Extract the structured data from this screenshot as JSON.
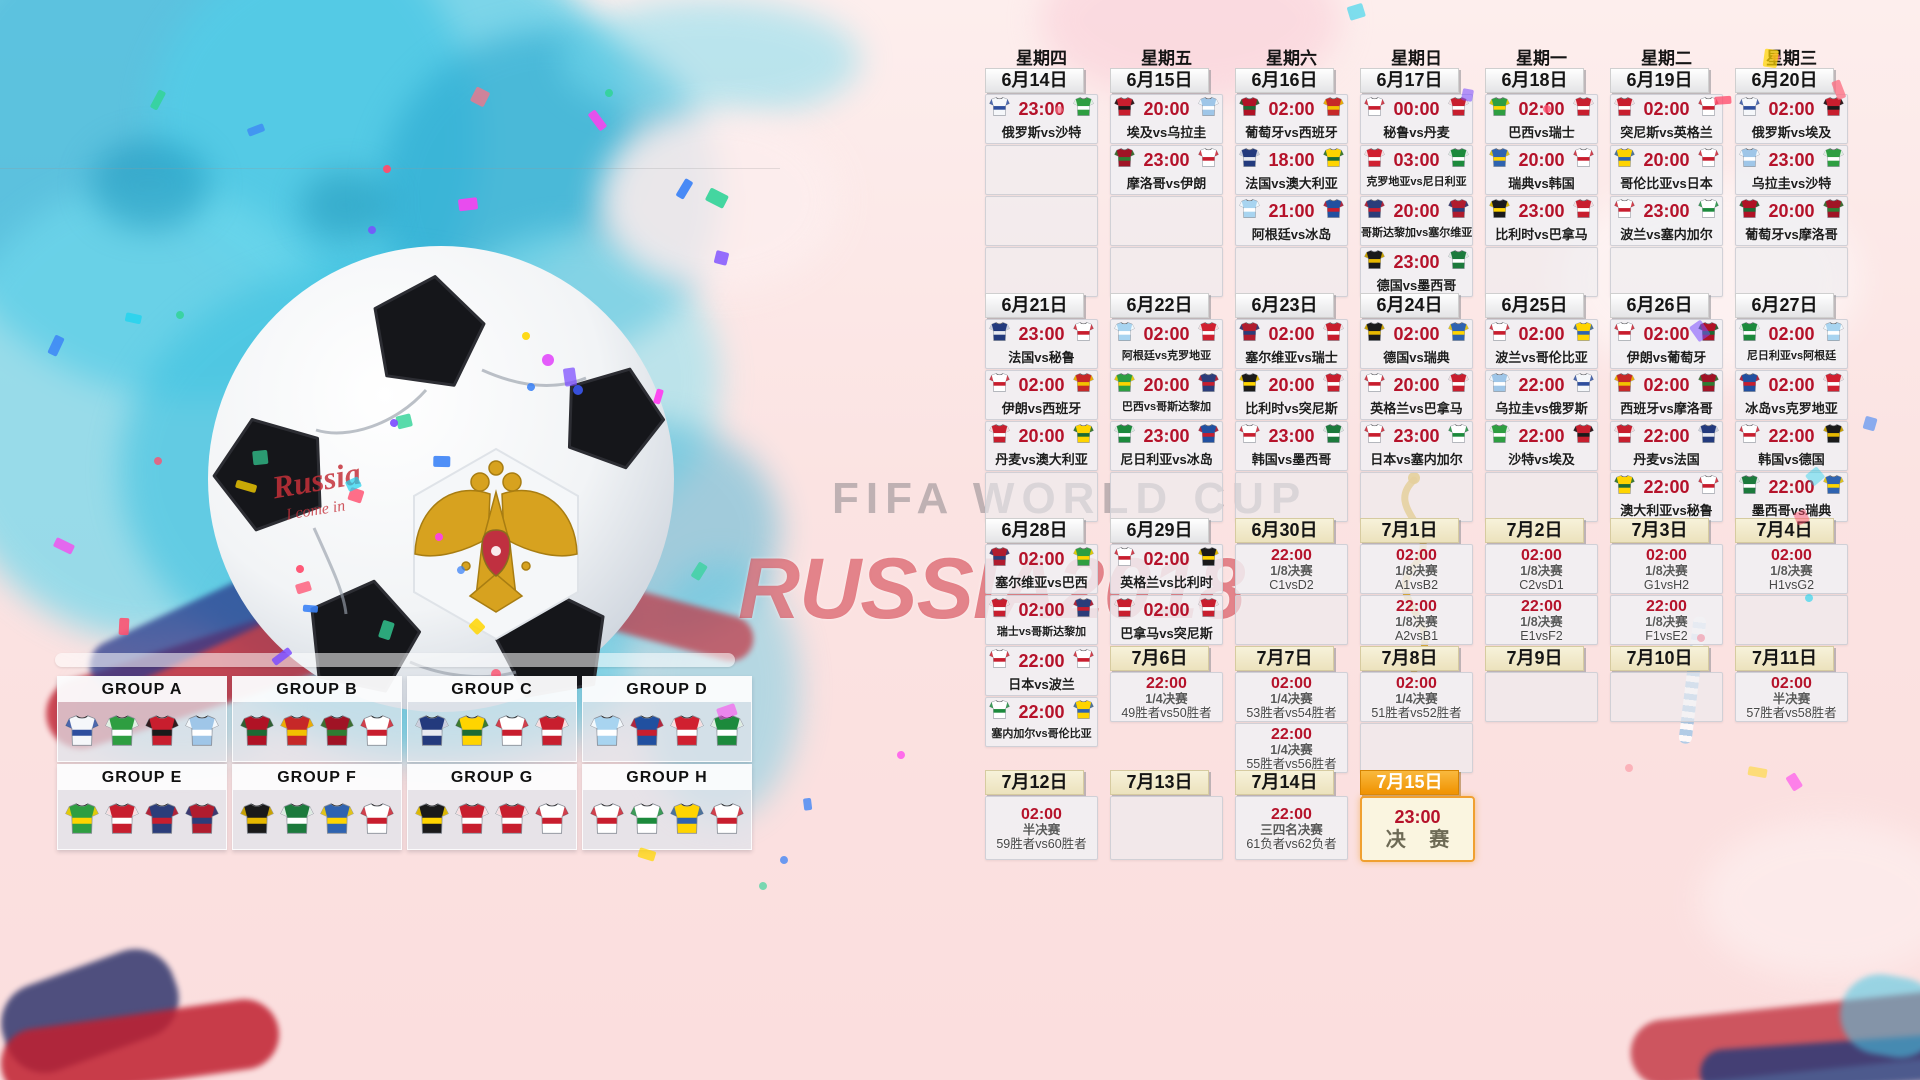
{
  "weekdays": [
    "星期四",
    "星期五",
    "星期六",
    "星期日",
    "星期一",
    "星期二",
    "星期三"
  ],
  "watermark": {
    "line1": "FIFA WORLD CUP",
    "line2": "RUSSIA2018"
  },
  "ball_graffiti": {
    "line1": "Russia",
    "line2": "I come in"
  },
  "colors": {
    "time_accent": "#b5122a",
    "header_plain": "#f2f2f2",
    "header_cream": "#efe8c9",
    "header_orange": "#f29500",
    "final_border": "#f0a030"
  },
  "teams": {
    "俄罗斯": [
      "#f5f7fa",
      "#2e4e9e"
    ],
    "沙特": [
      "#2e9e41",
      "#ffffff"
    ],
    "埃及": [
      "#c81e2e",
      "#1a1a1a"
    ],
    "乌拉圭": [
      "#9fc6e8",
      "#ffffff"
    ],
    "葡萄牙": [
      "#b01225",
      "#1c6b34"
    ],
    "西班牙": [
      "#c62828",
      "#f2c200"
    ],
    "摩洛哥": [
      "#a01325",
      "#2e7d32"
    ],
    "伊朗": [
      "#ffffff",
      "#c81e2e"
    ],
    "法国": [
      "#233a7d",
      "#e8eaf0"
    ],
    "澳大利亚": [
      "#ffd400",
      "#1c6b34"
    ],
    "秘鲁": [
      "#ffffff",
      "#c81e2e"
    ],
    "丹麦": [
      "#c81e2e",
      "#ffffff"
    ],
    "阿根廷": [
      "#a8d4f0",
      "#ffffff"
    ],
    "冰岛": [
      "#2150a0",
      "#c81e2e"
    ],
    "克罗地亚": [
      "#d02030",
      "#ffffff"
    ],
    "尼日利亚": [
      "#1c8a3c",
      "#ffffff"
    ],
    "巴西": [
      "#2e9e41",
      "#ffd400"
    ],
    "瑞士": [
      "#c81e2e",
      "#ffffff"
    ],
    "哥斯达黎加": [
      "#2b3d7a",
      "#c81e2e"
    ],
    "塞尔维亚": [
      "#b01c2e",
      "#2b3d7a"
    ],
    "德国": [
      "#1a1a1a",
      "#e6b800"
    ],
    "墨西哥": [
      "#1c7a3c",
      "#ffffff"
    ],
    "瑞典": [
      "#2f63b0",
      "#ffd400"
    ],
    "韩国": [
      "#ffffff",
      "#c81e2e"
    ],
    "比利时": [
      "#1a1a1a",
      "#ffd400"
    ],
    "巴拿马": [
      "#c81e2e",
      "#ffffff"
    ],
    "突尼斯": [
      "#c81e2e",
      "#ffffff"
    ],
    "英格兰": [
      "#ffffff",
      "#c81e2e"
    ],
    "哥伦比亚": [
      "#ffd400",
      "#2f63b0"
    ],
    "日本": [
      "#ffffff",
      "#c81e2e"
    ],
    "波兰": [
      "#ffffff",
      "#c81e2e"
    ],
    "塞内加尔": [
      "#ffffff",
      "#1c8a3c"
    ]
  },
  "groups": [
    {
      "label": "GROUP A",
      "teams": [
        "俄罗斯",
        "沙特",
        "埃及",
        "乌拉圭"
      ]
    },
    {
      "label": "GROUP B",
      "teams": [
        "葡萄牙",
        "西班牙",
        "摩洛哥",
        "伊朗"
      ]
    },
    {
      "label": "GROUP C",
      "teams": [
        "法国",
        "澳大利亚",
        "秘鲁",
        "丹麦"
      ]
    },
    {
      "label": "GROUP D",
      "teams": [
        "阿根廷",
        "冰岛",
        "克罗地亚",
        "尼日利亚"
      ]
    },
    {
      "label": "GROUP E",
      "teams": [
        "巴西",
        "瑞士",
        "哥斯达黎加",
        "塞尔维亚"
      ]
    },
    {
      "label": "GROUP F",
      "teams": [
        "德国",
        "墨西哥",
        "瑞典",
        "韩国"
      ]
    },
    {
      "label": "GROUP G",
      "teams": [
        "比利时",
        "巴拿马",
        "突尼斯",
        "英格兰"
      ]
    },
    {
      "label": "GROUP H",
      "teams": [
        "波兰",
        "塞内加尔",
        "哥伦比亚",
        "日本"
      ]
    }
  ],
  "calendar": {
    "sections": [
      {
        "cols": [
          {
            "col": 0,
            "date": "6月14日",
            "hs": "plain",
            "cells": [
              {
                "time": "23:00",
                "label": "俄罗斯vs沙特",
                "h": "俄罗斯",
                "a": "沙特"
              },
              {
                "e": true
              },
              {
                "e": true
              },
              {
                "e": true
              }
            ]
          },
          {
            "col": 1,
            "date": "6月15日",
            "hs": "plain",
            "cells": [
              {
                "time": "20:00",
                "label": "埃及vs乌拉圭",
                "h": "埃及",
                "a": "乌拉圭"
              },
              {
                "time": "23:00",
                "label": "摩洛哥vs伊朗",
                "h": "摩洛哥",
                "a": "伊朗"
              },
              {
                "e": true
              },
              {
                "e": true
              }
            ]
          },
          {
            "col": 2,
            "date": "6月16日",
            "hs": "plain",
            "cells": [
              {
                "time": "02:00",
                "label": "葡萄牙vs西班牙",
                "h": "葡萄牙",
                "a": "西班牙"
              },
              {
                "time": "18:00",
                "label": "法国vs澳大利亚",
                "h": "法国",
                "a": "澳大利亚"
              },
              {
                "time": "21:00",
                "label": "阿根廷vs冰岛",
                "h": "阿根廷",
                "a": "冰岛"
              },
              {
                "e": true
              }
            ]
          },
          {
            "col": 3,
            "date": "6月17日",
            "hs": "plain",
            "cells": [
              {
                "time": "00:00",
                "label": "秘鲁vs丹麦",
                "h": "秘鲁",
                "a": "丹麦"
              },
              {
                "time": "03:00",
                "label": "克罗地亚vs尼日利亚",
                "h": "克罗地亚",
                "a": "尼日利亚"
              },
              {
                "time": "20:00",
                "label": "哥斯达黎加vs塞尔维亚",
                "h": "哥斯达黎加",
                "a": "塞尔维亚"
              },
              {
                "time": "23:00",
                "label": "德国vs墨西哥",
                "h": "德国",
                "a": "墨西哥"
              }
            ]
          },
          {
            "col": 4,
            "date": "6月18日",
            "hs": "plain",
            "cells": [
              {
                "time": "02:00",
                "label": "巴西vs瑞士",
                "h": "巴西",
                "a": "瑞士"
              },
              {
                "time": "20:00",
                "label": "瑞典vs韩国",
                "h": "瑞典",
                "a": "韩国"
              },
              {
                "time": "23:00",
                "label": "比利时vs巴拿马",
                "h": "比利时",
                "a": "巴拿马"
              },
              {
                "e": true
              }
            ]
          },
          {
            "col": 5,
            "date": "6月19日",
            "hs": "plain",
            "cells": [
              {
                "time": "02:00",
                "label": "突尼斯vs英格兰",
                "h": "突尼斯",
                "a": "英格兰"
              },
              {
                "time": "20:00",
                "label": "哥伦比亚vs日本",
                "h": "哥伦比亚",
                "a": "日本"
              },
              {
                "time": "23:00",
                "label": "波兰vs塞内加尔",
                "h": "波兰",
                "a": "塞内加尔"
              },
              {
                "e": true
              }
            ]
          },
          {
            "col": 6,
            "date": "6月20日",
            "hs": "plain",
            "cells": [
              {
                "time": "02:00",
                "label": "俄罗斯vs埃及",
                "h": "俄罗斯",
                "a": "埃及"
              },
              {
                "time": "23:00",
                "label": "乌拉圭vs沙特",
                "h": "乌拉圭",
                "a": "沙特"
              },
              {
                "time": "20:00",
                "label": "葡萄牙vs摩洛哥",
                "h": "葡萄牙",
                "a": "摩洛哥"
              },
              {
                "e": true
              }
            ]
          }
        ]
      },
      {
        "cols": [
          {
            "col": 0,
            "date": "6月21日",
            "hs": "plain",
            "cells": [
              {
                "time": "23:00",
                "label": "法国vs秘鲁",
                "h": "法国",
                "a": "秘鲁"
              },
              {
                "time": "02:00",
                "label": "伊朗vs西班牙",
                "h": "伊朗",
                "a": "西班牙"
              },
              {
                "time": "20:00",
                "label": "丹麦vs澳大利亚",
                "h": "丹麦",
                "a": "澳大利亚"
              },
              {
                "e": true
              }
            ]
          },
          {
            "col": 1,
            "date": "6月22日",
            "hs": "plain",
            "cells": [
              {
                "time": "02:00",
                "label": "阿根廷vs克罗地亚",
                "h": "阿根廷",
                "a": "克罗地亚"
              },
              {
                "time": "20:00",
                "label": "巴西vs哥斯达黎加",
                "h": "巴西",
                "a": "哥斯达黎加"
              },
              {
                "time": "23:00",
                "label": "尼日利亚vs冰岛",
                "h": "尼日利亚",
                "a": "冰岛"
              },
              {
                "e": true
              }
            ]
          },
          {
            "col": 2,
            "date": "6月23日",
            "hs": "plain",
            "cells": [
              {
                "time": "02:00",
                "label": "塞尔维亚vs瑞士",
                "h": "塞尔维亚",
                "a": "瑞士"
              },
              {
                "time": "20:00",
                "label": "比利时vs突尼斯",
                "h": "比利时",
                "a": "突尼斯"
              },
              {
                "time": "23:00",
                "label": "韩国vs墨西哥",
                "h": "韩国",
                "a": "墨西哥"
              },
              {
                "e": true
              }
            ]
          },
          {
            "col": 3,
            "date": "6月24日",
            "hs": "plain",
            "cells": [
              {
                "time": "02:00",
                "label": "德国vs瑞典",
                "h": "德国",
                "a": "瑞典"
              },
              {
                "time": "20:00",
                "label": "英格兰vs巴拿马",
                "h": "英格兰",
                "a": "巴拿马"
              },
              {
                "time": "23:00",
                "label": "日本vs塞内加尔",
                "h": "日本",
                "a": "塞内加尔"
              },
              {
                "e": true
              }
            ]
          },
          {
            "col": 4,
            "date": "6月25日",
            "hs": "plain",
            "cells": [
              {
                "time": "02:00",
                "label": "波兰vs哥伦比亚",
                "h": "波兰",
                "a": "哥伦比亚"
              },
              {
                "time": "22:00",
                "label": "乌拉圭vs俄罗斯",
                "h": "乌拉圭",
                "a": "俄罗斯"
              },
              {
                "time": "22:00",
                "label": "沙特vs埃及",
                "h": "沙特",
                "a": "埃及"
              },
              {
                "e": true
              }
            ]
          },
          {
            "col": 5,
            "date": "6月26日",
            "hs": "plain",
            "cells": [
              {
                "time": "02:00",
                "label": "伊朗vs葡萄牙",
                "h": "伊朗",
                "a": "葡萄牙"
              },
              {
                "time": "02:00",
                "label": "西班牙vs摩洛哥",
                "h": "西班牙",
                "a": "摩洛哥"
              },
              {
                "time": "22:00",
                "label": "丹麦vs法国",
                "h": "丹麦",
                "a": "法国"
              },
              {
                "time": "22:00",
                "label": "澳大利亚vs秘鲁",
                "h": "澳大利亚",
                "a": "秘鲁"
              }
            ]
          },
          {
            "col": 6,
            "date": "6月27日",
            "hs": "plain",
            "cells": [
              {
                "time": "02:00",
                "label": "尼日利亚vs阿根廷",
                "h": "尼日利亚",
                "a": "阿根廷"
              },
              {
                "time": "02:00",
                "label": "冰岛vs克罗地亚",
                "h": "冰岛",
                "a": "克罗地亚"
              },
              {
                "time": "22:00",
                "label": "韩国vs德国",
                "h": "韩国",
                "a": "德国"
              },
              {
                "time": "22:00",
                "label": "墨西哥vs瑞典",
                "h": "墨西哥",
                "a": "瑞典"
              }
            ]
          }
        ]
      },
      {
        "cols": [
          {
            "col": 0,
            "date": "6月28日",
            "hs": "plain",
            "cells": [
              {
                "time": "02:00",
                "label": "塞尔维亚vs巴西",
                "h": "塞尔维亚",
                "a": "巴西"
              },
              {
                "time": "02:00",
                "label": "瑞士vs哥斯达黎加",
                "h": "瑞士",
                "a": "哥斯达黎加"
              }
            ]
          },
          {
            "col": 1,
            "date": "6月29日",
            "hs": "plain",
            "cells": [
              {
                "time": "02:00",
                "label": "英格兰vs比利时",
                "h": "英格兰",
                "a": "比利时"
              },
              {
                "time": "02:00",
                "label": "巴拿马vs突尼斯",
                "h": "巴拿马",
                "a": "突尼斯"
              }
            ]
          },
          {
            "col": 2,
            "date": "6月30日",
            "hs": "cream",
            "cells": [
              {
                "time": "22:00",
                "round": "1/8决赛",
                "pair": "C1vsD2"
              },
              {
                "e": true
              }
            ]
          },
          {
            "col": 3,
            "date": "7月1日",
            "hs": "cream",
            "cells": [
              {
                "time": "02:00",
                "round": "1/8决赛",
                "pair": "A1vsB2"
              },
              {
                "time": "22:00",
                "round": "1/8决赛",
                "pair": "A2vsB1"
              }
            ]
          },
          {
            "col": 4,
            "date": "7月2日",
            "hs": "cream",
            "cells": [
              {
                "time": "02:00",
                "round": "1/8决赛",
                "pair": "C2vsD1"
              },
              {
                "time": "22:00",
                "round": "1/8决赛",
                "pair": "E1vsF2"
              }
            ]
          },
          {
            "col": 5,
            "date": "7月3日",
            "hs": "cream",
            "cells": [
              {
                "time": "02:00",
                "round": "1/8决赛",
                "pair": "G1vsH2"
              },
              {
                "time": "22:00",
                "round": "1/8决赛",
                "pair": "F1vsE2"
              }
            ]
          },
          {
            "col": 6,
            "date": "7月4日",
            "hs": "cream",
            "cells": [
              {
                "time": "02:00",
                "round": "1/8决赛",
                "pair": "H1vsG2"
              },
              {
                "e": true
              }
            ]
          }
        ]
      },
      {
        "cols": [
          {
            "col": 0,
            "date": null,
            "cells": [
              {
                "time": "22:00",
                "label": "日本vs波兰",
                "h": "日本",
                "a": "波兰"
              },
              {
                "time": "22:00",
                "label": "塞内加尔vs哥伦比亚",
                "h": "塞内加尔",
                "a": "哥伦比亚"
              }
            ]
          },
          {
            "col": 1,
            "date": "7月6日",
            "hs": "cream",
            "cells": [
              {
                "time": "22:00",
                "round": "1/4决赛",
                "pair": "49胜者vs50胜者"
              }
            ]
          },
          {
            "col": 2,
            "date": "7月7日",
            "hs": "cream",
            "cells": [
              {
                "time": "02:00",
                "round": "1/4决赛",
                "pair": "53胜者vs54胜者"
              },
              {
                "time": "22:00",
                "round": "1/4决赛",
                "pair": "55胜者vs56胜者"
              }
            ]
          },
          {
            "col": 3,
            "date": "7月8日",
            "hs": "cream",
            "cells": [
              {
                "time": "02:00",
                "round": "1/4决赛",
                "pair": "51胜者vs52胜者"
              },
              {
                "e": true
              }
            ]
          },
          {
            "col": 4,
            "date": "7月9日",
            "hs": "cream",
            "cells": [
              {
                "e": true
              }
            ]
          },
          {
            "col": 5,
            "date": "7月10日",
            "hs": "cream",
            "cells": [
              {
                "e": true
              }
            ]
          },
          {
            "col": 6,
            "date": "7月11日",
            "hs": "cream",
            "cells": [
              {
                "time": "02:00",
                "round": "半决赛",
                "pair": "57胜者vs58胜者"
              }
            ]
          }
        ]
      },
      {
        "cols": [
          {
            "col": 0,
            "date": "7月12日",
            "hs": "cream",
            "cells": [
              {
                "time": "02:00",
                "round": "半决赛",
                "pair": "59胜者vs60胜者"
              }
            ]
          },
          {
            "col": 1,
            "date": "7月13日",
            "hs": "cream",
            "cells": [
              {
                "e": true
              }
            ]
          },
          {
            "col": 2,
            "date": "7月14日",
            "hs": "cream",
            "cells": [
              {
                "time": "22:00",
                "round": "三四名决赛",
                "pair": "61负者vs62负者"
              }
            ]
          },
          {
            "col": 3,
            "date": "7月15日",
            "hs": "orange",
            "cells": [
              {
                "final": true,
                "time": "23:00",
                "label": "决 赛"
              }
            ]
          }
        ]
      }
    ]
  }
}
